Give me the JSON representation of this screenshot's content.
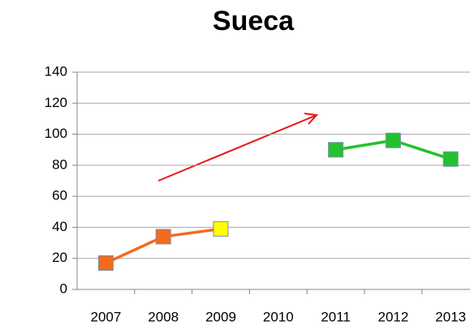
{
  "chart_data": {
    "type": "line",
    "title": "Sueca",
    "categories": [
      "2007",
      "2008",
      "2009",
      "2010",
      "2011",
      "2012",
      "2013"
    ],
    "series": [
      {
        "color": "#f26b1d",
        "values": [
          17,
          34,
          39,
          null,
          null,
          null,
          null
        ],
        "marker_colors": [
          "#f26b1d",
          "#f26b1d",
          "#ffff00",
          null,
          null,
          null,
          null
        ]
      },
      {
        "color": "#22c22e",
        "values": [
          null,
          null,
          null,
          null,
          90,
          96,
          84
        ],
        "marker_colors": [
          null,
          null,
          null,
          null,
          "#22c22e",
          "#22c22e",
          "#22c22e"
        ]
      }
    ],
    "ylim": [
      0,
      140
    ],
    "yticks": [
      0,
      20,
      40,
      60,
      80,
      100,
      120,
      140
    ],
    "grid": true
  }
}
